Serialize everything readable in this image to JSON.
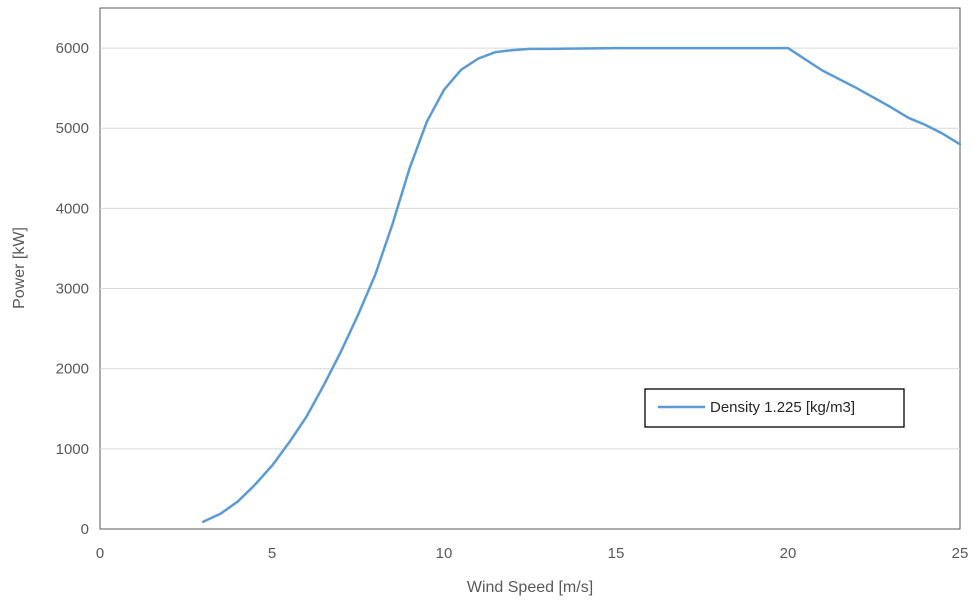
{
  "chart_data": {
    "type": "line",
    "title": "",
    "xlabel": "Wind Speed [m/s]",
    "ylabel": "Power [kW]",
    "xlim": [
      0,
      25
    ],
    "ylim": [
      0,
      6500
    ],
    "xticks": [
      0,
      5,
      10,
      15,
      20,
      25
    ],
    "yticks": [
      0,
      1000,
      2000,
      3000,
      4000,
      5000,
      6000
    ],
    "grid": "horizontal",
    "legend_position": "lower-right",
    "series": [
      {
        "name": "Density 1.225 [kg/m3]",
        "color": "#5B9BD5",
        "x": [
          3,
          3.5,
          4,
          4.5,
          5,
          5.5,
          6,
          6.5,
          7,
          7.5,
          8,
          8.5,
          9,
          9.5,
          10,
          10.5,
          11,
          11.5,
          12,
          12.5,
          13,
          14,
          15,
          16,
          17,
          18,
          19,
          20,
          20.5,
          21,
          22,
          23,
          23.5,
          24,
          24.5,
          25
        ],
        "y": [
          90,
          190,
          340,
          550,
          790,
          1080,
          1400,
          1790,
          2210,
          2670,
          3170,
          3800,
          4500,
          5080,
          5480,
          5730,
          5870,
          5950,
          5975,
          5990,
          5990,
          5995,
          6000,
          6000,
          6000,
          6000,
          6000,
          6000,
          5860,
          5720,
          5500,
          5260,
          5130,
          5040,
          4930,
          4800
        ]
      }
    ]
  }
}
